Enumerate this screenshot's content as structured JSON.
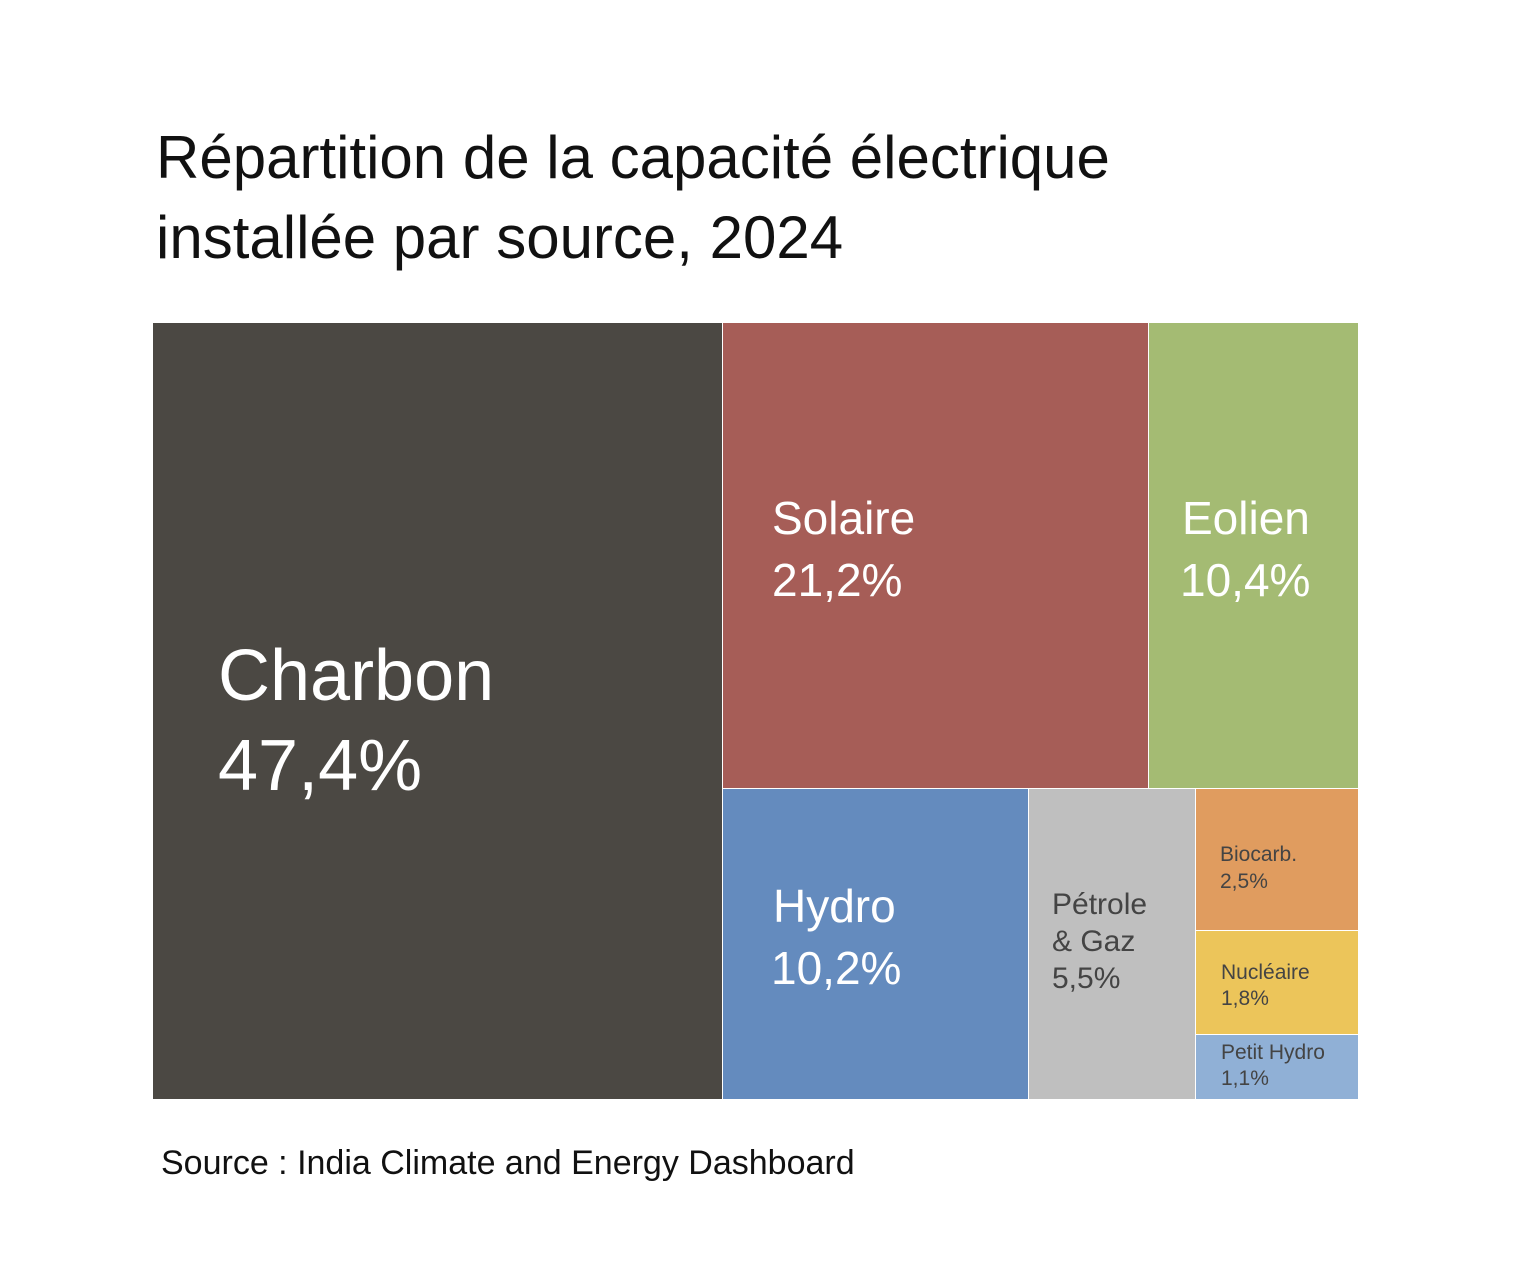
{
  "chart_data": {
    "type": "treemap",
    "title": "Répartition de la capacité électrique installée par source, 2024",
    "title_lines": [
      "Répartition de la capacité électrique",
      "installée par source, 2024"
    ],
    "unit": "%",
    "items": [
      {
        "name": "Charbon",
        "value": 47.4,
        "value_label": "47,4%",
        "color": "#4b4843",
        "text_color": "#ffffff"
      },
      {
        "name": "Solaire",
        "value": 21.2,
        "value_label": "21,2%",
        "color": "#a65d57",
        "text_color": "#ffffff"
      },
      {
        "name": "Eolien",
        "value": 10.4,
        "value_label": "10,4%",
        "color": "#a4bb73",
        "text_color": "#ffffff"
      },
      {
        "name": "Hydro",
        "value": 10.2,
        "value_label": "10,2%",
        "color": "#648bbe",
        "text_color": "#ffffff"
      },
      {
        "name": "Pétrole & Gaz",
        "name_lines": [
          "Pétrole",
          "& Gaz"
        ],
        "value": 5.5,
        "value_label": "5,5%",
        "color": "#bfbfbf",
        "text_color": "#444444"
      },
      {
        "name": "Biocarb.",
        "value": 2.5,
        "value_label": "2,5%",
        "color": "#e09c5f",
        "text_color": "#444444"
      },
      {
        "name": "Nucléaire",
        "value": 1.8,
        "value_label": "1,8%",
        "color": "#ecc55a",
        "text_color": "#444444"
      },
      {
        "name": "Petit Hydro",
        "value": 1.1,
        "value_label": "1,1%",
        "color": "#90b0d6",
        "text_color": "#444444"
      }
    ],
    "source": "Source : India Climate and Energy Dashboard"
  }
}
